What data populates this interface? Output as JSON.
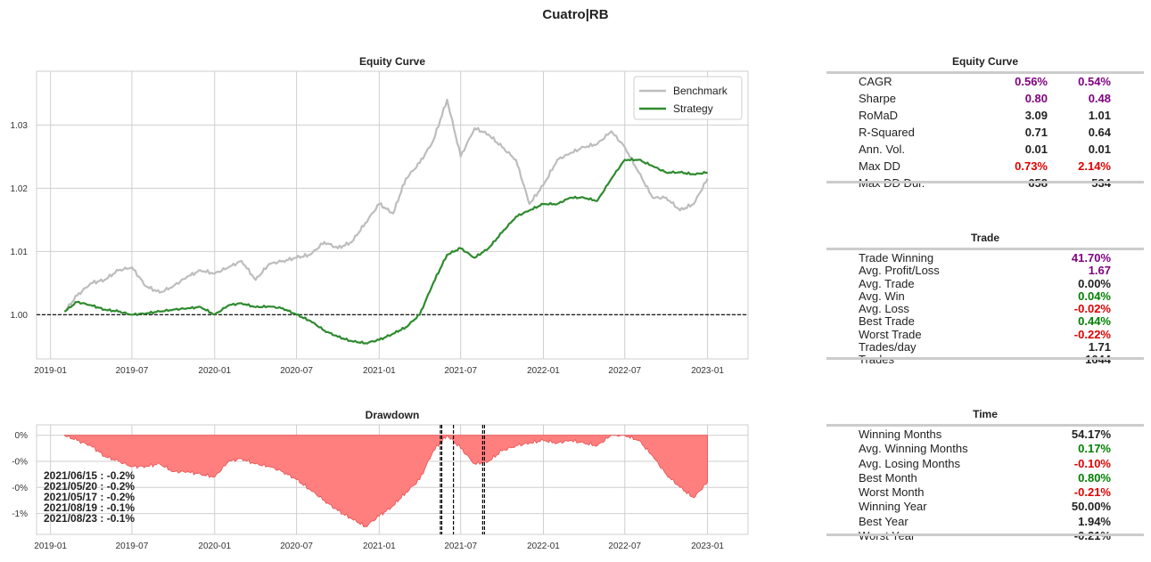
{
  "suptitle": "Cuatro|RB",
  "colors": {
    "benchmark": "#bdbdbd",
    "strategy": "#2e8b2e",
    "drawdown": "#ff7f7f",
    "purple": "#800080",
    "green": "#008000",
    "red": "#e00000",
    "dark": "#222222"
  },
  "chart_data": [
    {
      "type": "line",
      "title": "Equity Curve",
      "x_ticks": [
        "2019-01",
        "2019-07",
        "2020-01",
        "2020-07",
        "2021-01",
        "2021-07",
        "2022-01",
        "2022-07",
        "2023-01"
      ],
      "x_range": [
        "2018-12-01",
        "2023-04-01"
      ],
      "ylim": [
        0.993,
        1.0385
      ],
      "y_ticks": [
        1.0,
        1.01,
        1.02,
        1.03
      ],
      "y_tick_labels": [
        "1.00",
        "1.01",
        "1.02",
        "1.03"
      ],
      "legend": "top-right",
      "grid": true,
      "reference_line": 1.0,
      "series": [
        {
          "name": "Benchmark",
          "x": [
            "2019-02",
            "2019-03",
            "2019-04",
            "2019-05",
            "2019-06",
            "2019-07",
            "2019-08",
            "2019-09",
            "2019-10",
            "2019-11",
            "2019-12",
            "2020-01",
            "2020-02",
            "2020-03",
            "2020-04",
            "2020-05",
            "2020-06",
            "2020-07",
            "2020-08",
            "2020-09",
            "2020-10",
            "2020-11",
            "2020-12",
            "2021-01",
            "2021-02",
            "2021-03",
            "2021-04",
            "2021-05",
            "2021-06",
            "2021-07",
            "2021-08",
            "2021-09",
            "2021-10",
            "2021-11",
            "2021-12",
            "2022-01",
            "2022-02",
            "2022-03",
            "2022-04",
            "2022-05",
            "2022-06",
            "2022-07",
            "2022-08",
            "2022-09",
            "2022-10",
            "2022-11",
            "2022-12",
            "2023-01"
          ],
          "values": [
            1.0005,
            1.003,
            1.005,
            1.0055,
            1.007,
            1.0075,
            1.0045,
            1.0035,
            1.0045,
            1.006,
            1.007,
            1.0065,
            1.0075,
            1.0085,
            1.0055,
            1.008,
            1.0085,
            1.009,
            1.0095,
            1.0115,
            1.0105,
            1.0115,
            1.0145,
            1.0175,
            1.016,
            1.0215,
            1.024,
            1.0275,
            1.034,
            1.025,
            1.0295,
            1.0285,
            1.0265,
            1.0245,
            1.0175,
            1.0205,
            1.0245,
            1.0255,
            1.0265,
            1.027,
            1.029,
            1.0265,
            1.0225,
            1.0185,
            1.0185,
            1.0165,
            1.0175,
            1.0215
          ]
        },
        {
          "name": "Strategy",
          "x": [
            "2019-02",
            "2019-03",
            "2019-04",
            "2019-05",
            "2019-06",
            "2019-07",
            "2019-08",
            "2019-09",
            "2019-10",
            "2019-11",
            "2019-12",
            "2020-01",
            "2020-02",
            "2020-03",
            "2020-04",
            "2020-05",
            "2020-06",
            "2020-07",
            "2020-08",
            "2020-09",
            "2020-10",
            "2020-11",
            "2020-12",
            "2021-01",
            "2021-02",
            "2021-03",
            "2021-04",
            "2021-05",
            "2021-06",
            "2021-07",
            "2021-08",
            "2021-09",
            "2021-10",
            "2021-11",
            "2021-12",
            "2022-01",
            "2022-02",
            "2022-03",
            "2022-04",
            "2022-05",
            "2022-06",
            "2022-07",
            "2022-08",
            "2022-09",
            "2022-10",
            "2022-11",
            "2022-12",
            "2023-01"
          ],
          "values": [
            1.0005,
            1.002,
            1.0015,
            1.0008,
            1.0005,
            1.0,
            1.0002,
            1.0005,
            1.0008,
            1.001,
            1.0012,
            1.0,
            1.0015,
            1.0018,
            1.0012,
            1.0013,
            1.001,
            1.0,
            0.999,
            0.9975,
            0.9965,
            0.9958,
            0.9955,
            0.996,
            0.997,
            0.998,
            1.0,
            1.005,
            1.0095,
            1.0105,
            1.009,
            1.0105,
            1.013,
            1.0155,
            1.0165,
            1.0175,
            1.0175,
            1.0185,
            1.0185,
            1.018,
            1.0215,
            1.0245,
            1.0245,
            1.0235,
            1.0225,
            1.0225,
            1.0222,
            1.0225
          ]
        }
      ]
    },
    {
      "type": "area",
      "title": "Drawdown",
      "x_ticks": [
        "2019-01",
        "2019-07",
        "2020-01",
        "2020-07",
        "2021-01",
        "2021-07",
        "2022-01",
        "2022-07",
        "2023-01"
      ],
      "x_range": [
        "2018-12-01",
        "2023-04-01"
      ],
      "ylim": [
        -1.9,
        0.2
      ],
      "y_ticks": [
        0,
        -0.5,
        -1.0,
        -1.5
      ],
      "y_tick_labels": [
        "0%",
        "-0%",
        "-0%",
        "-1%"
      ],
      "grid": true,
      "series": [
        {
          "name": "",
          "x": [
            "2019-02",
            "2019-03",
            "2019-04",
            "2019-05",
            "2019-06",
            "2019-07",
            "2019-08",
            "2019-09",
            "2019-10",
            "2019-11",
            "2019-12",
            "2020-01",
            "2020-02",
            "2020-03",
            "2020-04",
            "2020-05",
            "2020-06",
            "2020-07",
            "2020-08",
            "2020-09",
            "2020-10",
            "2020-11",
            "2020-12",
            "2021-01",
            "2021-02",
            "2021-03",
            "2021-04",
            "2021-05",
            "2021-06",
            "2021-07",
            "2021-08",
            "2021-09",
            "2021-10",
            "2021-11",
            "2021-12",
            "2022-01",
            "2022-02",
            "2022-03",
            "2022-04",
            "2022-05",
            "2022-06",
            "2022-07",
            "2022-08",
            "2022-09",
            "2022-10",
            "2022-11",
            "2022-12",
            "2023-01"
          ],
          "values": [
            0,
            -0.1,
            -0.2,
            -0.4,
            -0.5,
            -0.6,
            -0.6,
            -0.55,
            -0.7,
            -0.7,
            -0.75,
            -0.8,
            -0.5,
            -0.45,
            -0.55,
            -0.6,
            -0.7,
            -0.85,
            -1.05,
            -1.25,
            -1.45,
            -1.6,
            -1.75,
            -1.55,
            -1.35,
            -1.1,
            -0.85,
            -0.3,
            0,
            -0.25,
            -0.55,
            -0.5,
            -0.3,
            -0.2,
            -0.15,
            -0.1,
            -0.15,
            -0.1,
            -0.15,
            -0.2,
            0,
            0,
            -0.1,
            -0.4,
            -0.75,
            -1.0,
            -1.2,
            -0.9
          ]
        }
      ],
      "vlines": [
        "2021-06-15",
        "2021-05-20",
        "2021-05-17",
        "2021-08-19",
        "2021-08-23"
      ],
      "annotations": [
        "2021/06/15 : -0.2%",
        "2021/05/20 : -0.2%",
        "2021/05/17 : -0.2%",
        "2021/08/19 : -0.1%",
        "2021/08/23 : -0.1%"
      ]
    }
  ],
  "tables": [
    {
      "title": "Equity Curve",
      "rows": [
        {
          "label": "CAGR",
          "v1": "0.56%",
          "c1": "purple",
          "v2": "0.54%",
          "c2": "purple"
        },
        {
          "label": "Sharpe",
          "v1": "0.80",
          "c1": "purple",
          "v2": "0.48",
          "c2": "purple"
        },
        {
          "label": "RoMaD",
          "v1": "3.09",
          "c1": "dark",
          "v2": "1.01",
          "c2": "dark"
        },
        {
          "label": "R-Squared",
          "v1": "0.71",
          "c1": "dark",
          "v2": "0.64",
          "c2": "dark"
        },
        {
          "label": "Ann. Vol.",
          "v1": "0.01",
          "c1": "dark",
          "v2": "0.01",
          "c2": "dark"
        },
        {
          "label": "Max DD",
          "v1": "0.73%",
          "c1": "red",
          "v2": "2.14%",
          "c2": "red"
        },
        {
          "label": "Max DD Dur.",
          "v1": "658",
          "c1": "dark",
          "v2": "534",
          "c2": "dark"
        }
      ]
    },
    {
      "title": "Trade",
      "rows": [
        {
          "label": "Trade Winning",
          "v2": "41.70%",
          "c2": "purple"
        },
        {
          "label": "Avg. Profit/Loss",
          "v2": "1.67",
          "c2": "purple"
        },
        {
          "label": "Avg. Trade",
          "v2": "0.00%",
          "c2": "dark"
        },
        {
          "label": "Avg. Win",
          "v2": "0.04%",
          "c2": "green"
        },
        {
          "label": "Avg. Loss",
          "v2": "-0.02%",
          "c2": "red"
        },
        {
          "label": "Best Trade",
          "v2": "0.44%",
          "c2": "green"
        },
        {
          "label": "Worst Trade",
          "v2": "-0.22%",
          "c2": "red"
        },
        {
          "label": "Trades/day",
          "v2": "1.71",
          "c2": "dark"
        },
        {
          "label": "Trades",
          "v2": "1644",
          "c2": "dark"
        }
      ]
    },
    {
      "title": "Time",
      "rows": [
        {
          "label": "Winning Months",
          "v2": "54.17%",
          "c2": "dark"
        },
        {
          "label": "Avg. Winning Months",
          "v2": "0.17%",
          "c2": "green"
        },
        {
          "label": "Avg. Losing Months",
          "v2": "-0.10%",
          "c2": "red"
        },
        {
          "label": "Best Month",
          "v2": "0.80%",
          "c2": "green"
        },
        {
          "label": "Worst Month",
          "v2": "-0.21%",
          "c2": "red"
        },
        {
          "label": "Winning Year",
          "v2": "50.00%",
          "c2": "dark"
        },
        {
          "label": "Best Year",
          "v2": "1.94%",
          "c2": "dark"
        },
        {
          "label": "Worst Year",
          "v2": "-0.21%",
          "c2": "dark"
        }
      ]
    }
  ]
}
